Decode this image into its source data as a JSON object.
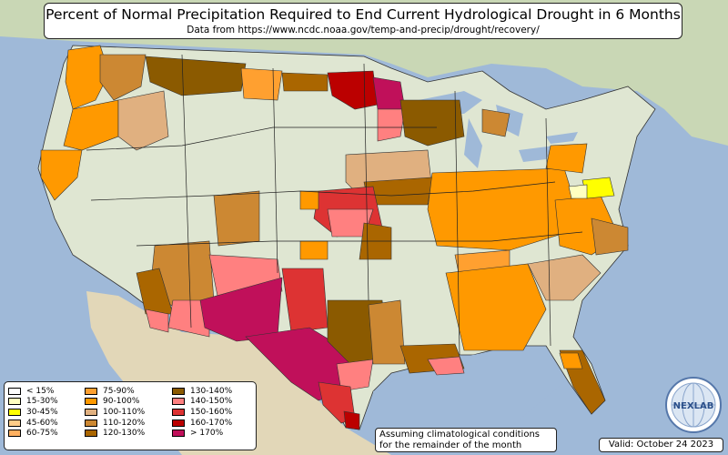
{
  "header": {
    "title": "Percent of Normal Precipitation Required to End Current Hydrological Drought in 6 Months",
    "subtitle": "Data from https://www.ncdc.noaa.gov/temp-and-precip/drought/recovery/"
  },
  "legend": {
    "items": [
      {
        "label": "< 15%",
        "color": "#ffffff"
      },
      {
        "label": "15-30%",
        "color": "#ffffc0"
      },
      {
        "label": "30-45%",
        "color": "#ffff00"
      },
      {
        "label": "45-60%",
        "color": "#ffcc88"
      },
      {
        "label": "60-75%",
        "color": "#ffb060"
      },
      {
        "label": "75-90%",
        "color": "#ffa030"
      },
      {
        "label": "90-100%",
        "color": "#ff9900"
      },
      {
        "label": "100-110%",
        "color": "#e0b080"
      },
      {
        "label": "110-120%",
        "color": "#cc8833"
      },
      {
        "label": "120-130%",
        "color": "#aa6600"
      },
      {
        "label": "130-140%",
        "color": "#8b5a00"
      },
      {
        "label": "140-150%",
        "color": "#ff8080"
      },
      {
        "label": "150-160%",
        "color": "#dd3333"
      },
      {
        "label": "160-170%",
        "color": "#bb0000"
      },
      {
        "label": "> 170%",
        "color": "#c0105a"
      }
    ]
  },
  "note": {
    "line1": "Assuming climatological conditions",
    "line2": "for the remainder of the month"
  },
  "valid": "Valid: October 24 2023",
  "logo": {
    "text": "NEXLAB",
    "icon": "globe-logo-icon"
  },
  "map": {
    "colors": {
      "ocean": "#9fb9d8",
      "land": "#dfe6d2",
      "canada": "#c9d7b5",
      "mexico": "#e2d7b8"
    }
  }
}
